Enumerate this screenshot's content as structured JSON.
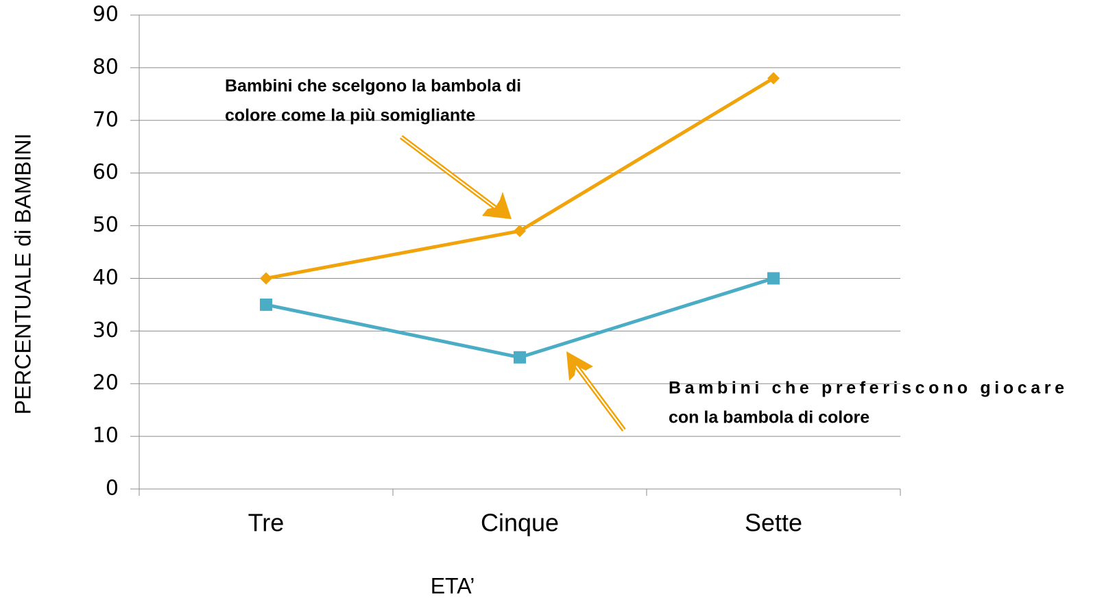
{
  "chart_data": {
    "type": "line",
    "xlabel": "ETA’",
    "ylabel": "PERCENTUALE di BAMBINI",
    "categories": [
      "Tre",
      "Cinque",
      "Sette"
    ],
    "series": [
      {
        "color": "#f0a30a",
        "marker": "diamond",
        "values": [
          40,
          49,
          78
        ]
      },
      {
        "color": "#4bacc6",
        "marker": "square",
        "values": [
          35,
          25,
          40
        ]
      }
    ],
    "ylim": [
      0,
      90
    ],
    "yticks": [
      0,
      10,
      20,
      30,
      40,
      50,
      60,
      70,
      80,
      90
    ],
    "grid": true,
    "annotations": [
      {
        "lines": [
          "Bambini che scelgono la bambola di",
          "colore come la più somigliante"
        ]
      },
      {
        "lines": [
          "Bambini che preferiscono giocare",
          "con la bambola di colore"
        ]
      }
    ]
  }
}
